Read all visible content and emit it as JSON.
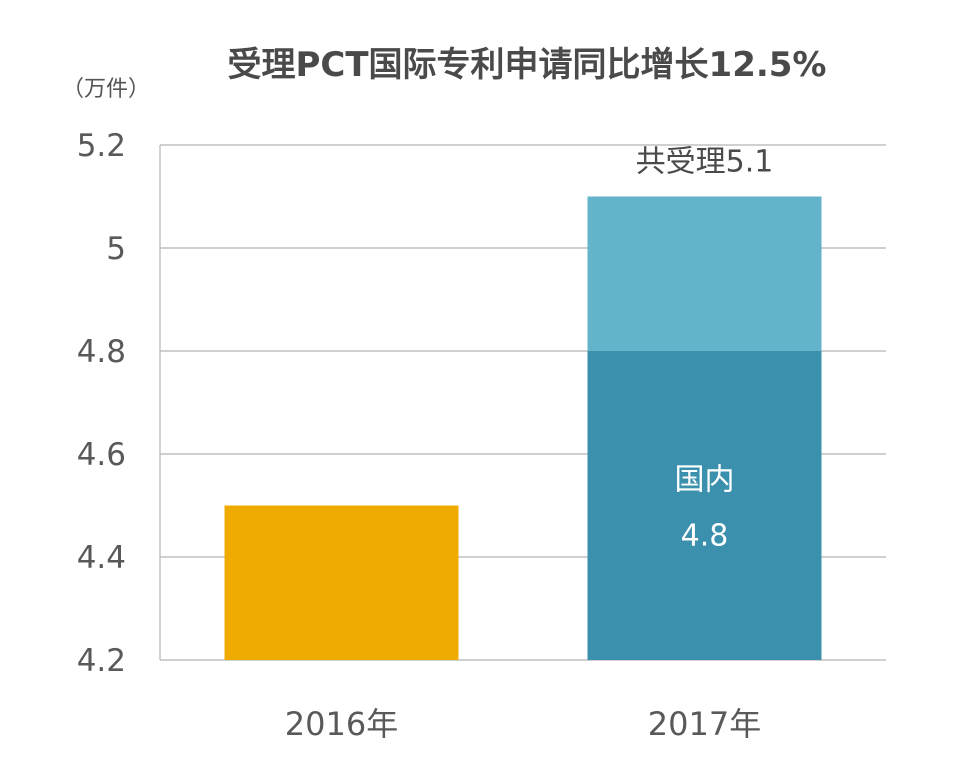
{
  "chart_data": {
    "type": "bar",
    "stacked": true,
    "title": "受理PCT国际专利申请同比增长12.5%",
    "unit_label": "（万件）",
    "categories": [
      "2016年",
      "2017年"
    ],
    "y_ticks": [
      "4.2",
      "4.4",
      "4.6",
      "4.8",
      "5",
      "5.2"
    ],
    "ylim": [
      4.2,
      5.2
    ],
    "grid": true,
    "bars": [
      {
        "category": "2016年",
        "total": 4.5,
        "segments": [
          {
            "value": 4.5,
            "color": "#f0ab00"
          }
        ]
      },
      {
        "category": "2017年",
        "total": 5.1,
        "segments": [
          {
            "name": "国内",
            "value": 4.8,
            "color": "#3a90ad"
          },
          {
            "value": 0.3,
            "color": "#63b3cb"
          }
        ]
      }
    ],
    "annotations": {
      "total_2017": "共受理5.1",
      "domestic_name": "国内",
      "domestic_value": "4.8"
    }
  }
}
